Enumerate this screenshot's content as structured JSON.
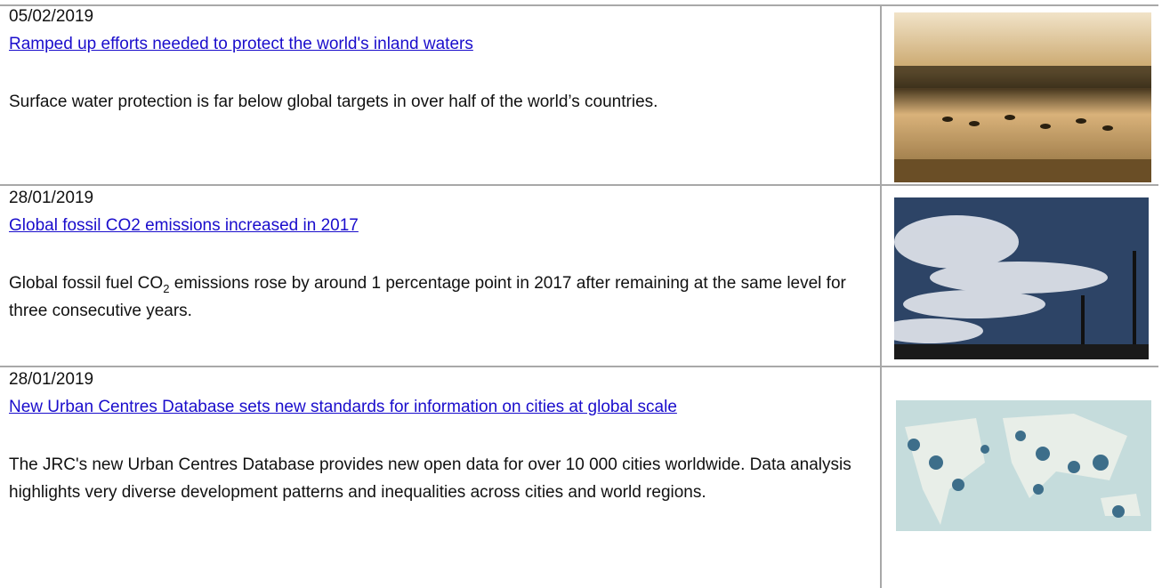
{
  "items": [
    {
      "date": "05/02/2019",
      "title": "Ramped up efforts needed to protect the world's inland waters",
      "summary": "Surface water protection is far below global targets in over half of the world’s countries."
    },
    {
      "date": "28/01/2019",
      "title": "Global fossil CO2 emissions increased in 2017",
      "summary_parts": [
        "Global fossil fuel CO",
        "2",
        " emissions rose by around 1 percentage point in 2017 after remaining at the same level for three consecutive years."
      ]
    },
    {
      "date": "28/01/2019",
      "title": "New Urban Centres Database sets new standards for information on cities at global scale",
      "summary": "The JRC's new Urban Centres Database provides new open data for over 10 000 cities worldwide. Data analysis highlights very diverse development patterns and inequalities across cities and world regions."
    }
  ]
}
